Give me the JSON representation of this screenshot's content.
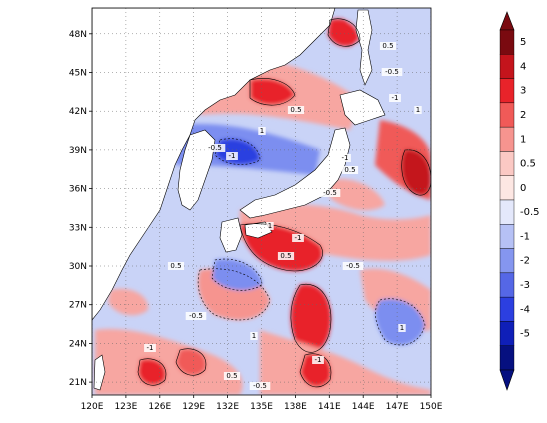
{
  "map": {
    "lat_ticks": [
      "48N",
      "45N",
      "42N",
      "39N",
      "36N",
      "33N",
      "30N",
      "27N",
      "24N",
      "21N"
    ],
    "lon_ticks": [
      "120E",
      "123E",
      "126E",
      "129E",
      "132E",
      "135E",
      "138E",
      "141E",
      "144E",
      "147E",
      "150E"
    ],
    "lat_range": [
      20,
      50
    ],
    "lon_range": [
      120,
      150
    ],
    "grid": "dotted",
    "contour_labels": [
      "0.5",
      "-0.5",
      "-1",
      "1",
      "0.5",
      "-0.5",
      "-1",
      "1",
      "-1",
      "0.5",
      "-0.5",
      "1",
      "-1",
      "0.5",
      "-0.5",
      "0.5",
      "-0.5",
      "-1",
      "1",
      "-1",
      "0.5",
      "-0.5",
      "1"
    ],
    "colors": {
      "strong_positive": "#e8232a",
      "positive": "#f7a6a1",
      "weak_positive": "#fbd7d2",
      "weak_negative": "#c9d3f7",
      "negative": "#7b8ef0",
      "strong_negative": "#2c3fe0",
      "land": "#ffffff"
    }
  },
  "colorbar": {
    "labels": [
      "5",
      "4",
      "3",
      "2",
      "1",
      "0.5",
      "0",
      "-0.5",
      "-1",
      "-2",
      "-3",
      "-4",
      "-5"
    ],
    "colors": [
      "#7a0a10",
      "#c4141c",
      "#e8232a",
      "#f05a58",
      "#f6948f",
      "#fbc9c4",
      "#fde7e3",
      "#e4e8fb",
      "#b6c1f5",
      "#8596ef",
      "#5567e6",
      "#2c3fe0",
      "#0f1fb8",
      "#061080"
    ]
  }
}
